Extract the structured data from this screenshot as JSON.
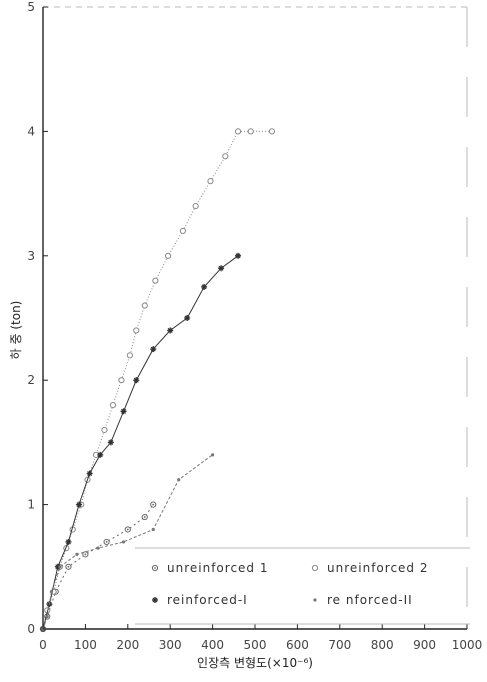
{
  "chart_data": {
    "type": "line",
    "title": "",
    "xlabel": "인장측 변형도(×10⁻⁶)",
    "ylabel": "하 중 (ton)",
    "xlim": [
      0,
      1000
    ],
    "ylim": [
      0,
      5
    ],
    "xticks": [
      "0",
      "100",
      "200",
      "300",
      "400",
      "500",
      "600",
      "700",
      "800",
      "900",
      "1000"
    ],
    "yticks": [
      "0",
      "1",
      "2",
      "3",
      "4",
      "5"
    ],
    "grid": false,
    "legend_position": "bottom-right",
    "series": [
      {
        "name": "unreinforced 1",
        "marker": "circle-dot",
        "color": "#666666",
        "x": [
          0,
          10,
          30,
          60,
          100,
          150,
          200,
          240,
          260
        ],
        "y": [
          0,
          0.1,
          0.3,
          0.5,
          0.6,
          0.7,
          0.8,
          0.9,
          1.0
        ]
      },
      {
        "name": "unreinforced 2",
        "marker": "circle",
        "color": "#888888",
        "x": [
          0,
          10,
          25,
          40,
          55,
          70,
          90,
          105,
          125,
          145,
          165,
          185,
          205,
          220,
          240,
          265,
          295,
          330,
          360,
          395,
          430,
          460,
          490,
          540
        ],
        "y": [
          0,
          0.15,
          0.3,
          0.5,
          0.65,
          0.8,
          1.0,
          1.2,
          1.4,
          1.6,
          1.8,
          2.0,
          2.2,
          2.4,
          2.6,
          2.8,
          3.0,
          3.2,
          3.4,
          3.6,
          3.8,
          4.0,
          4.0,
          4.0
        ]
      },
      {
        "name": "reinforced-I",
        "marker": "star",
        "color": "#333333",
        "x": [
          0,
          15,
          35,
          60,
          85,
          110,
          135,
          160,
          190,
          220,
          260,
          300,
          340,
          380,
          420,
          460
        ],
        "y": [
          0,
          0.2,
          0.5,
          0.7,
          1.0,
          1.25,
          1.4,
          1.5,
          1.75,
          2.0,
          2.25,
          2.4,
          2.5,
          2.75,
          2.9,
          3.0
        ]
      },
      {
        "name": "re nforced-II",
        "marker": "dot",
        "color": "#777777",
        "x": [
          0,
          10,
          20,
          40,
          80,
          130,
          190,
          260,
          320,
          400
        ],
        "y": [
          0,
          0.1,
          0.3,
          0.5,
          0.6,
          0.65,
          0.7,
          0.8,
          1.2,
          1.4
        ]
      }
    ]
  }
}
